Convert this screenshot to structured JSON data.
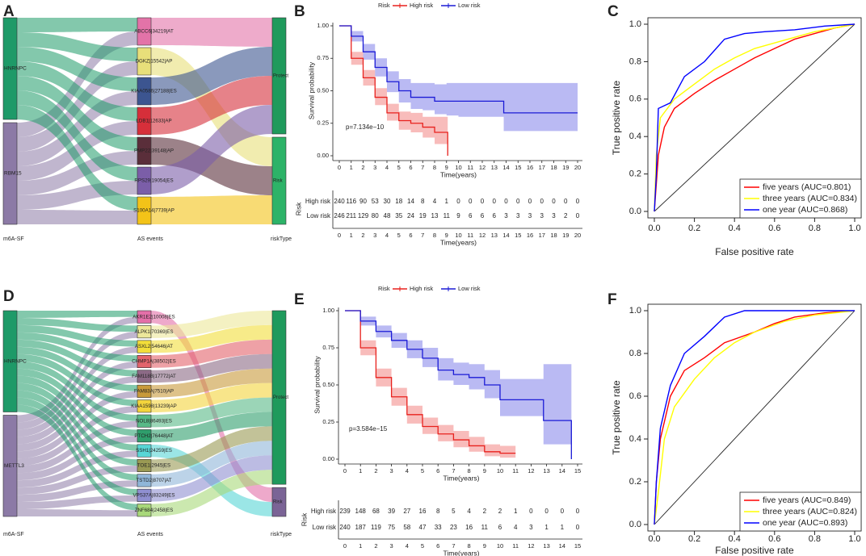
{
  "chart_data": [
    {
      "type": "sankey",
      "panel": "A",
      "axis_labels": [
        "m6A-SF",
        "AS events",
        "riskType"
      ],
      "left": [
        {
          "label": "HNRNPC",
          "color": "#1e9a68"
        },
        {
          "label": "RBM15",
          "color": "#8c7aa6"
        }
      ],
      "middle": [
        {
          "label": "ABCC6|34219|AT",
          "color": "#e373a8",
          "sources": [
            0,
            1
          ],
          "target": 0
        },
        {
          "label": "DGKZ|15542|AP",
          "color": "#e8df7a",
          "sources": [
            0,
            1
          ],
          "target": 1
        },
        {
          "label": "KIAA0586|27188|ES",
          "color": "#3c5590",
          "sources": [
            0,
            1
          ],
          "target": 0
        },
        {
          "label": "LDB1|12633|AP",
          "color": "#d62f3a",
          "sources": [
            0,
            1
          ],
          "target": 0
        },
        {
          "label": "PMP22|39148|AP",
          "color": "#5a2e3a",
          "sources": [
            0,
            1
          ],
          "target": 1
        },
        {
          "label": "RPS29|19054|ES",
          "color": "#7b5ea8",
          "sources": [
            0,
            1
          ],
          "target": 0
        },
        {
          "label": "S100A14|7739|AP",
          "color": "#f3c318",
          "sources": [
            0,
            1
          ],
          "target": 1
        }
      ],
      "right": [
        {
          "label": "Protect",
          "color": "#1f9a5c"
        },
        {
          "label": "Risk",
          "color": "#2db368"
        }
      ]
    },
    {
      "type": "km",
      "panel": "B",
      "legend_title": "Risk",
      "annotation": "p=7.134e−10",
      "xlabel": "Time(years)",
      "ylabel": "Survival probability",
      "xlim": [
        0,
        20
      ],
      "xticks": [
        0,
        1,
        2,
        3,
        4,
        5,
        6,
        7,
        8,
        9,
        10,
        11,
        12,
        13,
        14,
        15,
        16,
        17,
        18,
        19,
        20
      ],
      "ylim": [
        0,
        1
      ],
      "yticks": [
        {
          "value": 0,
          "label": "0.00"
        },
        {
          "value": 0.25,
          "label": "0.25"
        },
        {
          "value": 0.5,
          "label": "0.50"
        },
        {
          "value": 0.75,
          "label": "0.75"
        },
        {
          "value": 1,
          "label": "1.00"
        }
      ],
      "series": [
        {
          "name": "High risk",
          "color": "#e8211d",
          "x": [
            0,
            1,
            2,
            3,
            4,
            5,
            6,
            7,
            8,
            9,
            9.1
          ],
          "values": [
            1,
            0.75,
            0.6,
            0.45,
            0.33,
            0.27,
            0.25,
            0.22,
            0.18,
            0.18,
            0
          ],
          "lower": [
            1,
            0.7,
            0.54,
            0.39,
            0.27,
            0.2,
            0.18,
            0.14,
            0.09,
            0.09,
            0.09
          ],
          "upper": [
            1,
            0.8,
            0.66,
            0.52,
            0.4,
            0.34,
            0.33,
            0.3,
            0.3,
            0.3,
            0.3
          ]
        },
        {
          "name": "Low risk",
          "color": "#1b1bd6",
          "x": [
            0,
            1,
            2,
            3,
            4,
            5,
            6,
            7,
            8,
            9,
            10,
            13.8,
            20
          ],
          "values": [
            1,
            0.92,
            0.8,
            0.68,
            0.57,
            0.5,
            0.45,
            0.45,
            0.42,
            0.42,
            0.42,
            0.33,
            0.33
          ],
          "lower": [
            1,
            0.88,
            0.74,
            0.61,
            0.49,
            0.41,
            0.36,
            0.35,
            0.32,
            0.31,
            0.3,
            0.19,
            0.19
          ],
          "upper": [
            1,
            0.96,
            0.86,
            0.75,
            0.65,
            0.59,
            0.56,
            0.56,
            0.55,
            0.56,
            0.56,
            0.56,
            0.56
          ]
        }
      ],
      "risk_table": {
        "title": "Risk",
        "xlabel": "Time(years)",
        "rows": [
          [
            240,
            116,
            90,
            53,
            30,
            18,
            14,
            8,
            4,
            1,
            0,
            0,
            0,
            0,
            0,
            0,
            0,
            0,
            0,
            0,
            0
          ],
          [
            246,
            211,
            129,
            80,
            48,
            35,
            24,
            19,
            13,
            11,
            9,
            6,
            6,
            6,
            3,
            3,
            3,
            3,
            3,
            2,
            0
          ]
        ]
      }
    },
    {
      "type": "roc",
      "panel": "C",
      "xlabel": "False positive rate",
      "ylabel": "True positive rate",
      "xlim": [
        0,
        1
      ],
      "ylim": [
        0,
        1
      ],
      "xticks": [
        {
          "value": 0,
          "label": "0.0"
        },
        {
          "value": 0.2,
          "label": "0.2"
        },
        {
          "value": 0.4,
          "label": "0.4"
        },
        {
          "value": 0.6,
          "label": "0.6"
        },
        {
          "value": 0.8,
          "label": "0.8"
        },
        {
          "value": 1,
          "label": "1.0"
        }
      ],
      "yticks": [
        {
          "value": 0,
          "label": "0.0"
        },
        {
          "value": 0.2,
          "label": "0.2"
        },
        {
          "value": 0.4,
          "label": "0.4"
        },
        {
          "value": 0.6,
          "label": "0.6"
        },
        {
          "value": 0.8,
          "label": "0.8"
        },
        {
          "value": 1,
          "label": "1.0"
        }
      ],
      "series": [
        {
          "name": "five years (AUC=0.801)",
          "color": "#ff0000",
          "x": [
            0,
            0.01,
            0.02,
            0.05,
            0.1,
            0.2,
            0.3,
            0.4,
            0.5,
            0.6,
            0.7,
            0.8,
            0.9,
            1
          ],
          "values": [
            0,
            0.15,
            0.3,
            0.45,
            0.55,
            0.63,
            0.7,
            0.76,
            0.82,
            0.87,
            0.92,
            0.95,
            0.98,
            1
          ]
        },
        {
          "name": "three years (AUC=0.834)",
          "color": "#ffff00",
          "x": [
            0,
            0.01,
            0.03,
            0.1,
            0.2,
            0.3,
            0.4,
            0.5,
            0.6,
            0.8,
            1
          ],
          "values": [
            0,
            0.3,
            0.5,
            0.6,
            0.68,
            0.76,
            0.82,
            0.87,
            0.9,
            0.96,
            1
          ]
        },
        {
          "name": "one year (AUC=0.868)",
          "color": "#0000ff",
          "x": [
            0,
            0.01,
            0.02,
            0.08,
            0.15,
            0.25,
            0.35,
            0.45,
            0.55,
            0.7,
            0.85,
            1
          ],
          "values": [
            0,
            0.2,
            0.55,
            0.58,
            0.72,
            0.8,
            0.92,
            0.95,
            0.96,
            0.97,
            0.99,
            1
          ]
        }
      ]
    },
    {
      "type": "sankey",
      "panel": "D",
      "axis_labels": [
        "m6A-SF",
        "AS events",
        "riskType"
      ],
      "left": [
        {
          "label": "HNRNPC",
          "color": "#1e9a68"
        },
        {
          "label": "METTL3",
          "color": "#8c7aa6"
        }
      ],
      "middle": [
        {
          "label": "AKR1E2|10008|ES",
          "color": "#e36fa8",
          "sources": [
            0,
            1
          ],
          "target": 1
        },
        {
          "label": "ALPK1|70369|ES",
          "color": "#ece79a",
          "sources": [
            0,
            1
          ],
          "target": 0
        },
        {
          "label": "ASXL2|54646|AT",
          "color": "#f2dd3a",
          "sources": [
            0,
            1
          ],
          "target": 0
        },
        {
          "label": "CHMP1A|38502|ES",
          "color": "#e3636b",
          "sources": [
            0,
            1
          ],
          "target": 0
        },
        {
          "label": "FAM118B|17772|AT",
          "color": "#8c6a86",
          "sources": [
            0,
            1
          ],
          "target": 0
        },
        {
          "label": "FAM83A|7510|AP",
          "color": "#c89a3a",
          "sources": [
            0,
            1
          ],
          "target": 0
        },
        {
          "label": "KIAA1598|13239|AP",
          "color": "#f3d43c",
          "sources": [
            0,
            1
          ],
          "target": 0
        },
        {
          "label": "NOL8|86493|ES",
          "color": "#58b987",
          "sources": [
            0,
            1
          ],
          "target": 0
        },
        {
          "label": "PTCH2|76448|AT",
          "color": "#2f9e6c",
          "sources": [
            0,
            1
          ],
          "target": 0
        },
        {
          "label": "SSH1|24259|ES",
          "color": "#58d6d6",
          "sources": [
            0,
            1
          ],
          "target": 1
        },
        {
          "label": "TOE1|2945|ES",
          "color": "#9a9a54",
          "sources": [
            0,
            1
          ],
          "target": 0
        },
        {
          "label": "TSTD2|8707|AT",
          "color": "#8fb6d8",
          "sources": [
            0,
            1
          ],
          "target": 0
        },
        {
          "label": "VPS37A|83249|ES",
          "color": "#8f8fd0",
          "sources": [
            0,
            1
          ],
          "target": 0
        },
        {
          "label": "ZNF684|2458|ES",
          "color": "#a8d87a",
          "sources": [
            0,
            1
          ],
          "target": 0
        }
      ],
      "right": [
        {
          "label": "Protect",
          "color": "#1f9a5c"
        },
        {
          "label": "Risk",
          "color": "#7b6496"
        }
      ]
    },
    {
      "type": "km",
      "panel": "E",
      "legend_title": "Risk",
      "annotation": "p=3.584e−15",
      "xlabel": "Time(years)",
      "ylabel": "Survival probability",
      "xlim": [
        0,
        15
      ],
      "xticks": [
        0,
        1,
        2,
        3,
        4,
        5,
        6,
        7,
        8,
        9,
        10,
        11,
        12,
        13,
        14,
        15
      ],
      "ylim": [
        0,
        1
      ],
      "yticks": [
        {
          "value": 0,
          "label": "0.00"
        },
        {
          "value": 0.25,
          "label": "0.25"
        },
        {
          "value": 0.5,
          "label": "0.50"
        },
        {
          "value": 0.75,
          "label": "0.75"
        },
        {
          "value": 1,
          "label": "1.00"
        }
      ],
      "series": [
        {
          "name": "High risk",
          "color": "#e8211d",
          "x": [
            0,
            1,
            2,
            3,
            4,
            5,
            6,
            7,
            8,
            9,
            10,
            11
          ],
          "values": [
            1,
            0.75,
            0.55,
            0.42,
            0.3,
            0.22,
            0.17,
            0.13,
            0.09,
            0.05,
            0.04,
            0.04
          ],
          "lower": [
            1,
            0.7,
            0.49,
            0.36,
            0.24,
            0.17,
            0.12,
            0.08,
            0.05,
            0.02,
            0.01,
            0.01
          ],
          "upper": [
            1,
            0.8,
            0.61,
            0.48,
            0.36,
            0.28,
            0.23,
            0.19,
            0.15,
            0.1,
            0.09,
            0.09
          ]
        },
        {
          "name": "Low risk",
          "color": "#1b1bd6",
          "x": [
            0,
            1,
            2,
            3,
            4,
            5,
            6,
            7,
            8,
            9,
            10,
            12.8,
            14.5,
            14.6
          ],
          "values": [
            1,
            0.93,
            0.86,
            0.8,
            0.74,
            0.68,
            0.6,
            0.57,
            0.55,
            0.5,
            0.4,
            0.26,
            0.26,
            0
          ],
          "lower": [
            1,
            0.9,
            0.82,
            0.75,
            0.68,
            0.62,
            0.53,
            0.5,
            0.47,
            0.41,
            0.29,
            0.1,
            0.1,
            0.1
          ],
          "upper": [
            1,
            0.96,
            0.9,
            0.85,
            0.8,
            0.75,
            0.68,
            0.65,
            0.64,
            0.6,
            0.54,
            0.64,
            0.64,
            0.64
          ]
        }
      ],
      "risk_table": {
        "title": "Risk",
        "xlabel": "Time(years)",
        "rows": [
          [
            239,
            148,
            68,
            39,
            27,
            16,
            8,
            5,
            4,
            2,
            2,
            1,
            0,
            0,
            0,
            0
          ],
          [
            240,
            187,
            119,
            75,
            58,
            47,
            33,
            23,
            16,
            11,
            6,
            4,
            3,
            1,
            1,
            0
          ]
        ]
      }
    },
    {
      "type": "roc",
      "panel": "F",
      "xlabel": "False positive rate",
      "ylabel": "True positive rate",
      "xlim": [
        0,
        1
      ],
      "ylim": [
        0,
        1
      ],
      "xticks": [
        {
          "value": 0,
          "label": "0.0"
        },
        {
          "value": 0.2,
          "label": "0.2"
        },
        {
          "value": 0.4,
          "label": "0.4"
        },
        {
          "value": 0.6,
          "label": "0.6"
        },
        {
          "value": 0.8,
          "label": "0.8"
        },
        {
          "value": 1,
          "label": "1.0"
        }
      ],
      "yticks": [
        {
          "value": 0,
          "label": "0.0"
        },
        {
          "value": 0.2,
          "label": "0.2"
        },
        {
          "value": 0.4,
          "label": "0.4"
        },
        {
          "value": 0.6,
          "label": "0.6"
        },
        {
          "value": 0.8,
          "label": "0.8"
        },
        {
          "value": 1,
          "label": "1.0"
        }
      ],
      "series": [
        {
          "name": "five years (AUC=0.849)",
          "color": "#ff0000",
          "x": [
            0,
            0.01,
            0.03,
            0.08,
            0.15,
            0.25,
            0.35,
            0.5,
            0.6,
            0.7,
            0.85,
            1
          ],
          "values": [
            0,
            0.2,
            0.4,
            0.6,
            0.72,
            0.78,
            0.85,
            0.9,
            0.94,
            0.97,
            0.99,
            1
          ]
        },
        {
          "name": "three years (AUC=0.824)",
          "color": "#ffff00",
          "x": [
            0,
            0.02,
            0.05,
            0.1,
            0.2,
            0.3,
            0.4,
            0.5,
            0.65,
            0.8,
            1
          ],
          "values": [
            0,
            0.15,
            0.4,
            0.55,
            0.68,
            0.78,
            0.85,
            0.9,
            0.95,
            0.98,
            1
          ]
        },
        {
          "name": "one year (AUC=0.893)",
          "color": "#0000ff",
          "x": [
            0,
            0.01,
            0.03,
            0.08,
            0.15,
            0.25,
            0.35,
            0.45,
            0.6,
            0.8,
            1
          ],
          "values": [
            0,
            0.2,
            0.45,
            0.65,
            0.8,
            0.88,
            0.97,
            1,
            1,
            1,
            1
          ]
        }
      ]
    }
  ]
}
